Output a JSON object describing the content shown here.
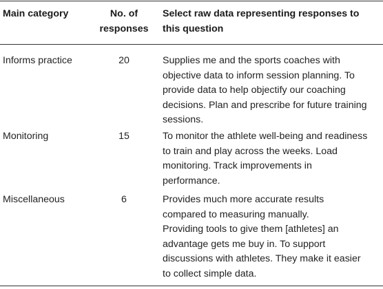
{
  "table": {
    "headers": {
      "col1": "Main category",
      "col2": [
        "No. of",
        "responses"
      ],
      "col3": [
        "Select raw data representing responses to",
        "this question"
      ]
    },
    "rows": [
      {
        "category": "Informs practice",
        "count": "20",
        "text_lines": [
          "Supplies me and the sports coaches with",
          "objective data to inform session planning. To",
          "provide data to help objectify our coaching",
          "decisions. Plan and prescribe for future training",
          "sessions."
        ]
      },
      {
        "category": "Monitoring",
        "count": "15",
        "text_lines": [
          "To monitor the athlete well-being and readiness",
          "to train and play across the weeks. Load",
          "monitoring. Track improvements in",
          "performance."
        ]
      },
      {
        "category": "Miscellaneous",
        "count": "6",
        "text_lines": [
          "Provides much more accurate results",
          "compared to measuring manually.",
          "Providing tools to give them [athletes] an",
          "advantage gets me buy in. To support",
          "discussions with athletes. They make it easier",
          "to collect simple data."
        ]
      }
    ]
  }
}
